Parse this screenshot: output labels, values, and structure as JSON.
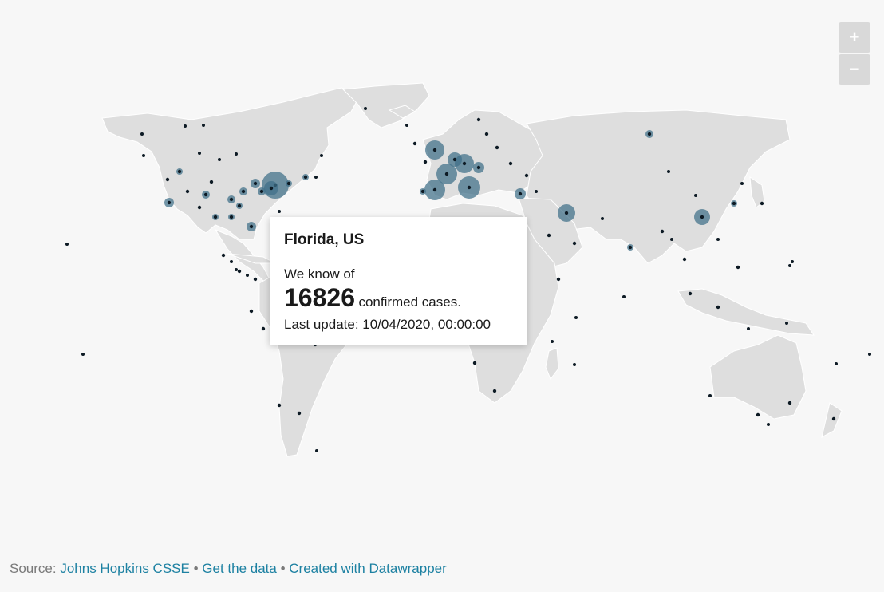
{
  "zoom": {
    "in_label": "+",
    "out_label": "−"
  },
  "tooltip": {
    "location": "Florida, US",
    "intro": "We know of",
    "count": "16826",
    "count_suffix": "confirmed cases.",
    "last_update": "Last update: 10/04/2020, 00:00:00"
  },
  "footer": {
    "source_prefix": "Source:",
    "source_link": "Johns Hopkins CSSE",
    "separator": "•",
    "data_link": "Get the data",
    "credit_link": "Created with Datawrapper"
  },
  "colors": {
    "land": "#dedede",
    "bubble": "#3f6f88",
    "dot": "#0d1a24",
    "link": "#1d81a2"
  }
}
